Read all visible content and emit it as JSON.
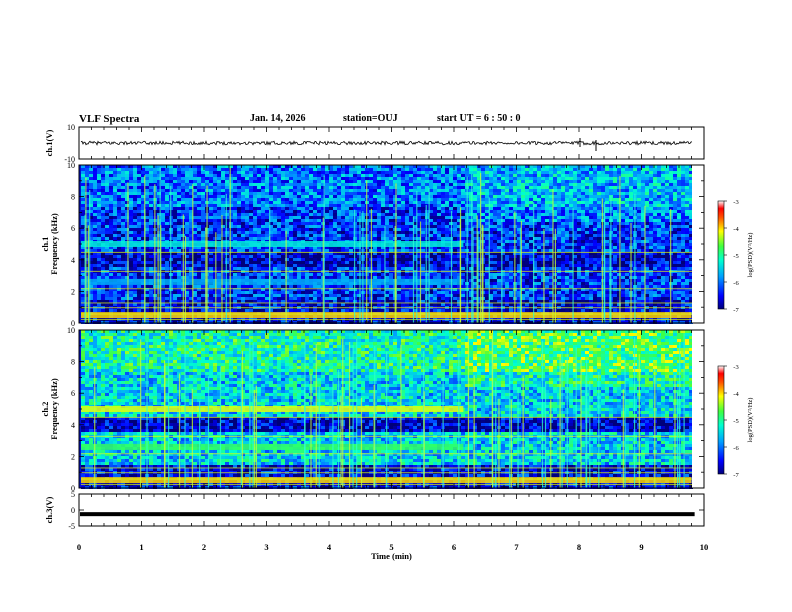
{
  "header": {
    "title": "VLF Spectra",
    "date": "Jan. 14, 2026",
    "station": "station=OUJ",
    "start": "start  UT =   6 : 50 : 0"
  },
  "chart_data": [
    {
      "type": "line",
      "panel": "ch1-waveform",
      "ylabel": "ch.1(V)",
      "ylim": [
        -10,
        10
      ],
      "yticks": [
        "10",
        "-10"
      ],
      "x": [
        0,
        10
      ],
      "description_level": 0,
      "series": [
        {
          "values": [
            0,
            0
          ]
        }
      ]
    },
    {
      "type": "heatmap",
      "panel": "ch1-spectrogram",
      "ylabel": "ch.1\nFrequency (kHz)",
      "ylim": [
        0,
        10
      ],
      "yticks": [
        "0",
        "2",
        "4",
        "6",
        "8",
        "10"
      ],
      "xlim": [
        0,
        10
      ],
      "bands": [
        {
          "f": 5.0,
          "t_end": 6.15,
          "level": -5.3
        },
        {
          "f": 2.6,
          "t_end": 6.15,
          "level": -5.7
        },
        {
          "f": 0.5,
          "t_end": 10,
          "level": -4.0
        }
      ],
      "colorbar": {
        "label": "log(PSD)(V²/Hz)",
        "ticks": [
          "-3",
          "-4",
          "-5",
          "-6",
          "-7"
        ],
        "range": [
          -7,
          -3
        ]
      }
    },
    {
      "type": "heatmap",
      "panel": "ch2-spectrogram",
      "ylabel": "ch.2\nFrequency (kHz)",
      "ylim": [
        0,
        10
      ],
      "yticks": [
        "0",
        "2",
        "4",
        "6",
        "8",
        "10"
      ],
      "xlim": [
        0,
        10
      ],
      "bands": [
        {
          "f": 5.0,
          "t_end": 6.15,
          "level": -4.2
        },
        {
          "f": 2.6,
          "t_end": 6.15,
          "level": -4.8
        },
        {
          "f": 0.5,
          "t_end": 10,
          "level": -4.0
        }
      ],
      "colorbar": {
        "label": "log(PSD)(V²/Hz)",
        "ticks": [
          "-3",
          "-4",
          "-5",
          "-6",
          "-7"
        ],
        "range": [
          -7,
          -3
        ]
      }
    },
    {
      "type": "line",
      "panel": "ch3-waveform",
      "ylabel": "ch.3(V)",
      "ylim": [
        -5,
        5
      ],
      "yticks": [
        "5",
        "0",
        "-5"
      ],
      "x": [
        0,
        9.85
      ],
      "series": [
        {
          "values": [
            -1.3,
            -1.3
          ]
        }
      ]
    }
  ],
  "xaxis": {
    "label": "Time  (min)",
    "ticks": [
      "0",
      "1",
      "2",
      "3",
      "4",
      "5",
      "6",
      "7",
      "8",
      "9",
      "10"
    ]
  }
}
